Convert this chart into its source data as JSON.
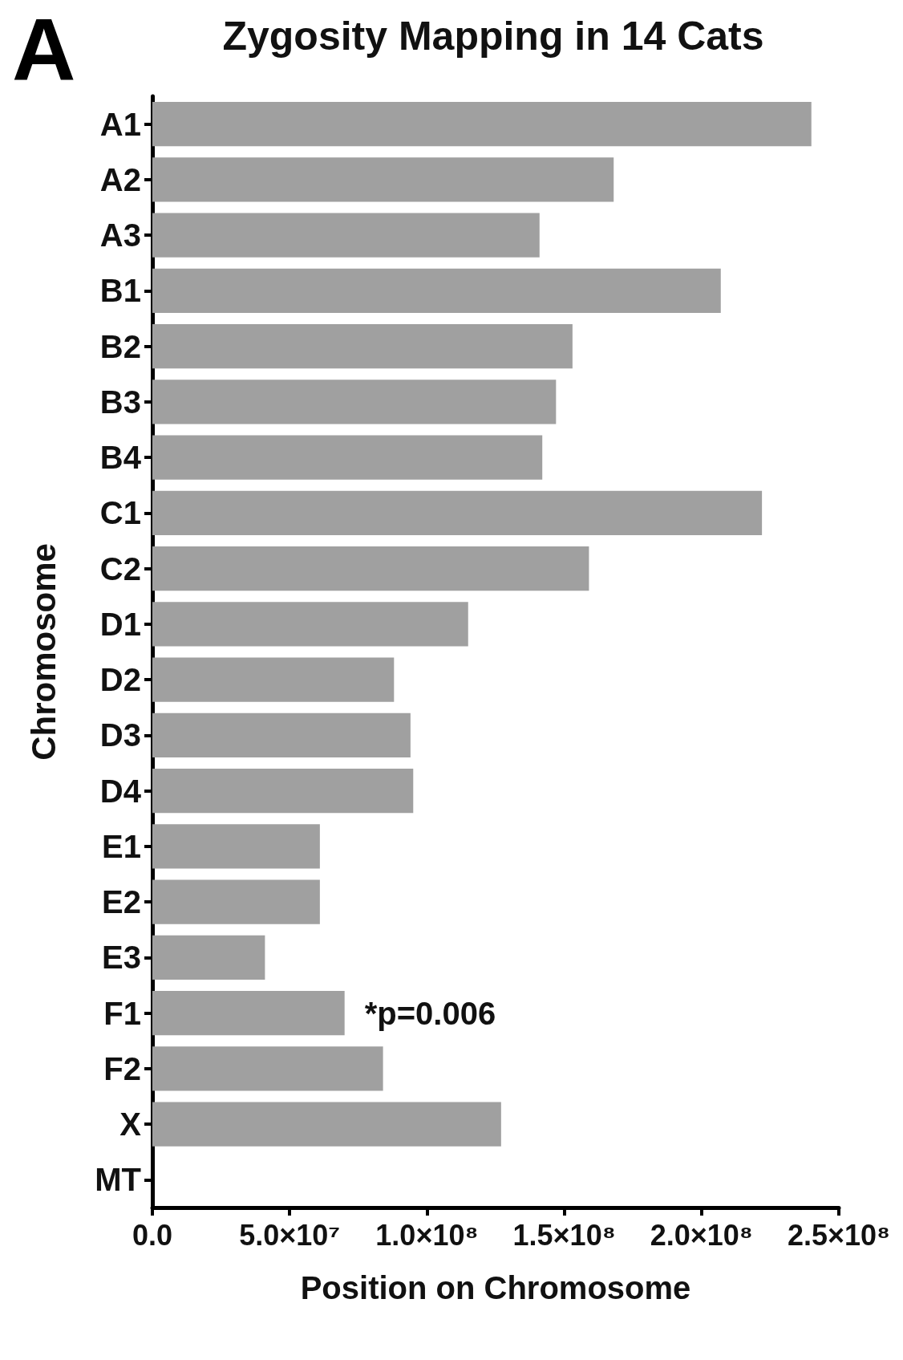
{
  "chart_data": {
    "type": "bar",
    "orientation": "horizontal",
    "title": "Zygosity Mapping in 14 Cats",
    "xlabel": "Position on Chromosome",
    "ylabel": "Chromosome",
    "annotations": [
      "A",
      {
        "text": "*p=0.006",
        "x": 70000000,
        "y": "F1"
      }
    ],
    "categories": [
      "A1",
      "A2",
      "A3",
      "B1",
      "B2",
      "B3",
      "B4",
      "C1",
      "C2",
      "D1",
      "D2",
      "D3",
      "D4",
      "E1",
      "E2",
      "E3",
      "F1",
      "F2",
      "X",
      "MT"
    ],
    "values": [
      240000000,
      168000000,
      141000000,
      207000000,
      153000000,
      147000000,
      142000000,
      222000000,
      159000000,
      115000000,
      88000000,
      94000000,
      95000000,
      61000000,
      61000000,
      41000000,
      70000000,
      84000000,
      127000000,
      0
    ],
    "color": "#a0a0a0",
    "xlim": [
      0,
      250000000
    ],
    "xticks": [
      {
        "value": 0,
        "label": "0.0"
      },
      {
        "value": 50000000,
        "label": "5.0×10⁷"
      },
      {
        "value": 100000000,
        "label": "1.0×10⁸"
      },
      {
        "value": 150000000,
        "label": "1.5×10⁸"
      },
      {
        "value": 200000000,
        "label": "2.0×10⁸"
      },
      {
        "value": 250000000,
        "label": "2.5×10⁸"
      }
    ],
    "grid": false
  }
}
